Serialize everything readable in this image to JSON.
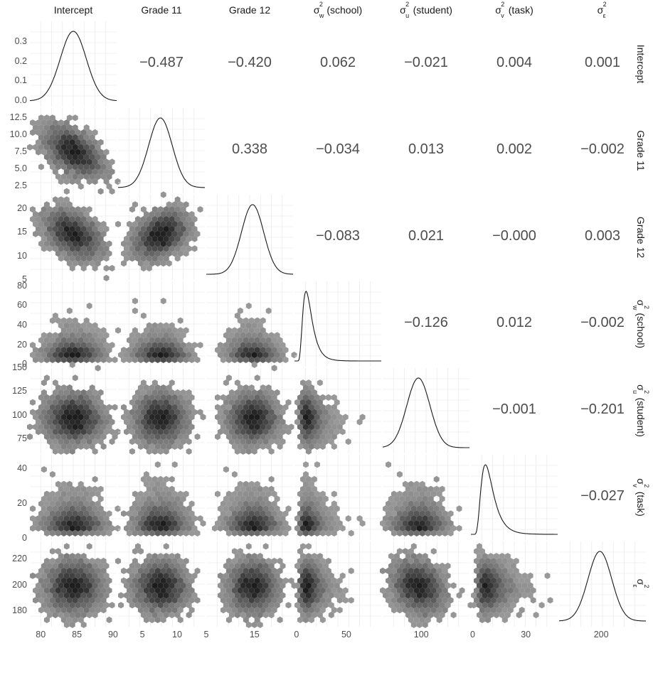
{
  "variables": [
    {
      "key": "intercept",
      "label": "Intercept"
    },
    {
      "key": "grade11",
      "label": "Grade 11"
    },
    {
      "key": "grade12",
      "label": "Grade 12"
    },
    {
      "key": "sw",
      "label": "σ_w^2 (school)",
      "sym_sub": "w",
      "rest": "(school)"
    },
    {
      "key": "su",
      "label": "σ_u^2 (student)",
      "sym_sub": "u",
      "rest": "(student)"
    },
    {
      "key": "sv",
      "label": "σ_v^2 (task)",
      "sym_sub": "v",
      "rest": "(task)"
    },
    {
      "key": "se",
      "label": "σ_ε^2",
      "sym_sub": "ε",
      "rest": ""
    }
  ],
  "chart_data": {
    "type": "scatter-matrix",
    "description_parts": {
      "diagonal": "density",
      "lower": "hexbin",
      "upper": "correlation"
    },
    "correlations": [
      {
        "row": 0,
        "col": 1,
        "value": "−0.487"
      },
      {
        "row": 0,
        "col": 2,
        "value": "−0.420"
      },
      {
        "row": 0,
        "col": 3,
        "value": "0.062"
      },
      {
        "row": 0,
        "col": 4,
        "value": "−0.021"
      },
      {
        "row": 0,
        "col": 5,
        "value": "0.004"
      },
      {
        "row": 0,
        "col": 6,
        "value": "0.001"
      },
      {
        "row": 1,
        "col": 2,
        "value": "0.338"
      },
      {
        "row": 1,
        "col": 3,
        "value": "−0.034"
      },
      {
        "row": 1,
        "col": 4,
        "value": "0.013"
      },
      {
        "row": 1,
        "col": 5,
        "value": "0.002"
      },
      {
        "row": 1,
        "col": 6,
        "value": "−0.002"
      },
      {
        "row": 2,
        "col": 3,
        "value": "−0.083"
      },
      {
        "row": 2,
        "col": 4,
        "value": "0.021"
      },
      {
        "row": 2,
        "col": 5,
        "value": "−0.000"
      },
      {
        "row": 2,
        "col": 6,
        "value": "0.003"
      },
      {
        "row": 3,
        "col": 4,
        "value": "−0.126"
      },
      {
        "row": 3,
        "col": 5,
        "value": "0.012"
      },
      {
        "row": 3,
        "col": 6,
        "value": "−0.002"
      },
      {
        "row": 4,
        "col": 5,
        "value": "−0.001"
      },
      {
        "row": 4,
        "col": 6,
        "value": "−0.201"
      },
      {
        "row": 5,
        "col": 6,
        "value": "−0.027"
      }
    ],
    "distributions": [
      {
        "key": "intercept",
        "mean": 84.5,
        "sd": 1.8,
        "skew": 0,
        "range": [
          78.5,
          90.5
        ]
      },
      {
        "key": "grade11",
        "mean": 7.6,
        "sd": 1.7,
        "skew": 0,
        "range": [
          1.5,
          14
        ]
      },
      {
        "key": "grade12",
        "mean": 14.6,
        "sd": 2.3,
        "skew": 0,
        "range": [
          5,
          23
        ]
      },
      {
        "key": "sw",
        "mean": 12,
        "sd": 6,
        "skew": 1,
        "range": [
          -2,
          85
        ]
      },
      {
        "key": "su",
        "mean": 97,
        "sd": 12,
        "skew": 0,
        "range": [
          60,
          150
        ]
      },
      {
        "key": "sv",
        "mean": 9,
        "sd": 4.5,
        "skew": 1,
        "range": [
          -1,
          48
        ]
      },
      {
        "key": "se",
        "mean": 199,
        "sd": 9,
        "skew": 0,
        "range": [
          168,
          234
        ]
      }
    ],
    "density_y": {
      "range": [
        0,
        0.36
      ],
      "ticks": [
        "0.0",
        "0.1",
        "0.2",
        "0.3"
      ],
      "tick_values": [
        0,
        0.1,
        0.2,
        0.3
      ]
    },
    "y_ticks": [
      {
        "row": 1,
        "ticks": [
          "2.5",
          "5.0",
          "7.5",
          "10.0",
          "12.5"
        ],
        "values": [
          2.5,
          5,
          7.5,
          10,
          12.5
        ]
      },
      {
        "row": 2,
        "ticks": [
          "5",
          "10",
          "15",
          "20"
        ],
        "values": [
          5,
          10,
          15,
          20
        ]
      },
      {
        "row": 3,
        "ticks": [
          "0",
          "20",
          "40",
          "60",
          "80"
        ],
        "values": [
          0,
          20,
          40,
          60,
          80
        ]
      },
      {
        "row": 4,
        "ticks": [
          "75",
          "100",
          "125",
          "150"
        ],
        "values": [
          75,
          100,
          125,
          150
        ]
      },
      {
        "row": 5,
        "ticks": [
          "0",
          "20",
          "40"
        ],
        "values": [
          0,
          20,
          40
        ]
      },
      {
        "row": 6,
        "ticks": [
          "180",
          "200",
          "220"
        ],
        "values": [
          180,
          200,
          220
        ]
      }
    ],
    "x_ticks": [
      {
        "col": 0,
        "ticks": [
          "80",
          "85",
          "90"
        ],
        "values": [
          80,
          85,
          90
        ]
      },
      {
        "col": 1,
        "ticks": [
          "5",
          "10"
        ],
        "values": [
          5,
          10
        ]
      },
      {
        "col": 2,
        "ticks": [
          "5",
          "15"
        ],
        "values": [
          5,
          15
        ]
      },
      {
        "col": 3,
        "ticks": [
          "0",
          "50"
        ],
        "values": [
          0,
          50
        ]
      },
      {
        "col": 4,
        "ticks": [
          "100"
        ],
        "values": [
          100
        ]
      },
      {
        "col": 5,
        "ticks": [
          "0",
          "30"
        ],
        "values": [
          0,
          30
        ]
      },
      {
        "col": 6,
        "ticks": [
          "200"
        ],
        "values": [
          200
        ]
      }
    ],
    "colors": {
      "hex_dark": "#1c1c1c",
      "hex_light": "#a0a0a0",
      "grid": "#ebebeb",
      "density_line": "#1a1a1a",
      "corr_text": "#4d4d4d"
    }
  }
}
